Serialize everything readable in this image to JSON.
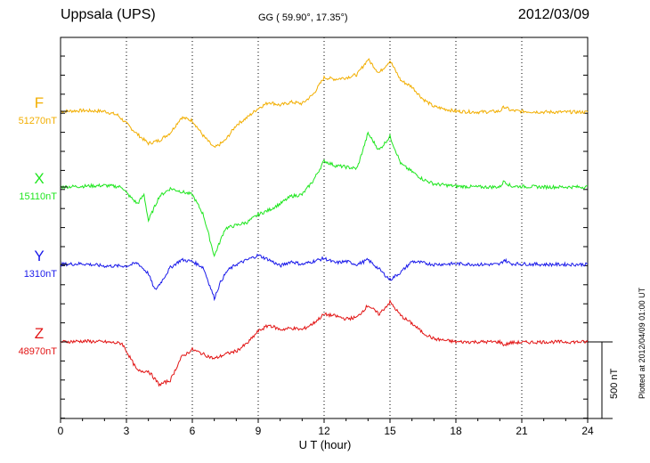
{
  "header": {
    "station": "Uppsala (UPS)",
    "coords": "GG ( 59.90°,  17.35°)",
    "date": "2012/03/09"
  },
  "side_note": "Plotted at 2012/04/09 01:00 UT",
  "chart_data": {
    "type": "line",
    "title": "Uppsala (UPS)",
    "xlabel": "U T (hour)",
    "xlim": [
      0,
      24
    ],
    "xticks": [
      0,
      3,
      6,
      9,
      12,
      15,
      18,
      21,
      24
    ],
    "grid": "dotted vertical at 3-hour ticks",
    "scale_bar": {
      "label": "500 nT",
      "value": 500
    },
    "series": [
      {
        "name": "F",
        "baseline_label": "51270nT",
        "baseline": 51270,
        "color": "#f2ae00",
        "points": [
          [
            0,
            0
          ],
          [
            1,
            5
          ],
          [
            2,
            0
          ],
          [
            2.6,
            -25
          ],
          [
            3,
            -80
          ],
          [
            3.5,
            -150
          ],
          [
            4,
            -210
          ],
          [
            4.5,
            -190
          ],
          [
            5,
            -140
          ],
          [
            5.5,
            -40
          ],
          [
            6,
            -60
          ],
          [
            6.5,
            -160
          ],
          [
            7,
            -240
          ],
          [
            7.5,
            -190
          ],
          [
            8,
            -90
          ],
          [
            8.5,
            -40
          ],
          [
            9,
            20
          ],
          [
            9.5,
            60
          ],
          [
            10,
            40
          ],
          [
            10.5,
            60
          ],
          [
            11,
            50
          ],
          [
            11.5,
            110
          ],
          [
            12,
            220
          ],
          [
            12.5,
            210
          ],
          [
            13,
            220
          ],
          [
            13.5,
            240
          ],
          [
            14,
            340
          ],
          [
            14.5,
            250
          ],
          [
            15,
            330
          ],
          [
            15.5,
            200
          ],
          [
            16,
            160
          ],
          [
            16.5,
            80
          ],
          [
            17,
            30
          ],
          [
            18,
            0
          ],
          [
            19,
            -5
          ],
          [
            20,
            0
          ],
          [
            20.2,
            30
          ],
          [
            20.5,
            5
          ],
          [
            21,
            0
          ],
          [
            22,
            -5
          ],
          [
            24,
            -5
          ]
        ]
      },
      {
        "name": "X",
        "baseline_label": "15110nT",
        "baseline": 15110,
        "color": "#1ee61e",
        "points": [
          [
            0,
            0
          ],
          [
            1,
            5
          ],
          [
            2,
            10
          ],
          [
            2.8,
            0
          ],
          [
            3,
            -40
          ],
          [
            3.5,
            -110
          ],
          [
            3.8,
            -50
          ],
          [
            4,
            -220
          ],
          [
            4.5,
            -60
          ],
          [
            5,
            -10
          ],
          [
            5.5,
            -30
          ],
          [
            6,
            -50
          ],
          [
            6.5,
            -180
          ],
          [
            7,
            -450
          ],
          [
            7.5,
            -270
          ],
          [
            8,
            -250
          ],
          [
            8.5,
            -230
          ],
          [
            9,
            -180
          ],
          [
            9.5,
            -150
          ],
          [
            10,
            -110
          ],
          [
            10.5,
            -60
          ],
          [
            11,
            -50
          ],
          [
            11.5,
            40
          ],
          [
            12,
            170
          ],
          [
            12.5,
            140
          ],
          [
            13,
            130
          ],
          [
            13.5,
            120
          ],
          [
            14,
            350
          ],
          [
            14.5,
            240
          ],
          [
            15,
            330
          ],
          [
            15.5,
            150
          ],
          [
            16,
            100
          ],
          [
            16.5,
            50
          ],
          [
            17,
            20
          ],
          [
            18,
            5
          ],
          [
            19,
            0
          ],
          [
            20,
            0
          ],
          [
            20.2,
            40
          ],
          [
            20.5,
            5
          ],
          [
            22,
            0
          ],
          [
            24,
            0
          ]
        ]
      },
      {
        "name": "Y",
        "baseline_label": "1310nT",
        "baseline": 1310,
        "color": "#1a1aea",
        "points": [
          [
            0,
            0
          ],
          [
            1,
            5
          ],
          [
            2,
            -10
          ],
          [
            3,
            -10
          ],
          [
            3.5,
            10
          ],
          [
            4,
            -60
          ],
          [
            4.3,
            -170
          ],
          [
            4.6,
            -110
          ],
          [
            5,
            -20
          ],
          [
            5.5,
            30
          ],
          [
            6,
            20
          ],
          [
            6.5,
            -20
          ],
          [
            7,
            -220
          ],
          [
            7.3,
            -110
          ],
          [
            7.6,
            -40
          ],
          [
            8,
            0
          ],
          [
            8.5,
            30
          ],
          [
            9,
            60
          ],
          [
            9.5,
            30
          ],
          [
            10,
            -10
          ],
          [
            10.5,
            20
          ],
          [
            11,
            0
          ],
          [
            11.5,
            20
          ],
          [
            12,
            40
          ],
          [
            12.5,
            10
          ],
          [
            13,
            20
          ],
          [
            13.5,
            0
          ],
          [
            14,
            30
          ],
          [
            14.5,
            -30
          ],
          [
            15,
            -100
          ],
          [
            15.5,
            -50
          ],
          [
            16,
            20
          ],
          [
            16.5,
            10
          ],
          [
            17,
            0
          ],
          [
            18,
            5
          ],
          [
            19,
            0
          ],
          [
            20,
            0
          ],
          [
            20.2,
            30
          ],
          [
            20.5,
            5
          ],
          [
            22,
            0
          ],
          [
            24,
            0
          ]
        ]
      },
      {
        "name": "Z",
        "baseline_label": "48970nT",
        "baseline": 48970,
        "color": "#e21414",
        "points": [
          [
            0,
            0
          ],
          [
            1,
            5
          ],
          [
            2,
            0
          ],
          [
            2.8,
            -10
          ],
          [
            3,
            -60
          ],
          [
            3.5,
            -190
          ],
          [
            4,
            -190
          ],
          [
            4.5,
            -280
          ],
          [
            5,
            -250
          ],
          [
            5.5,
            -100
          ],
          [
            6,
            -50
          ],
          [
            6.5,
            -80
          ],
          [
            7,
            -110
          ],
          [
            7.5,
            -80
          ],
          [
            8,
            -60
          ],
          [
            8.5,
            -10
          ],
          [
            9,
            70
          ],
          [
            9.5,
            110
          ],
          [
            10,
            80
          ],
          [
            10.5,
            90
          ],
          [
            11,
            80
          ],
          [
            11.5,
            120
          ],
          [
            12,
            180
          ],
          [
            12.5,
            170
          ],
          [
            13,
            150
          ],
          [
            13.5,
            160
          ],
          [
            14,
            240
          ],
          [
            14.5,
            180
          ],
          [
            15,
            260
          ],
          [
            15.5,
            170
          ],
          [
            16,
            120
          ],
          [
            16.5,
            60
          ],
          [
            17,
            20
          ],
          [
            18,
            0
          ],
          [
            19,
            0
          ],
          [
            20,
            0
          ],
          [
            20.2,
            -20
          ],
          [
            20.5,
            -5
          ],
          [
            22,
            0
          ],
          [
            24,
            0
          ]
        ]
      }
    ]
  }
}
